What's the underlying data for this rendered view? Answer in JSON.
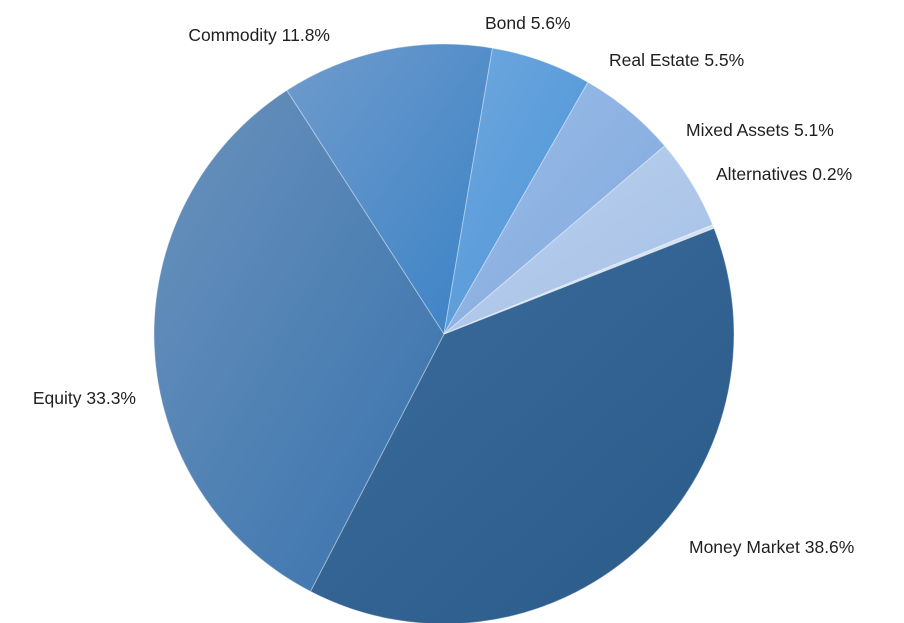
{
  "chart_data": {
    "type": "pie",
    "title": "",
    "slices": [
      {
        "label": "Money Market 38.6%",
        "value": 38.6,
        "color_from": "#3b6c9c",
        "color_to": "#2a5a88"
      },
      {
        "label": "Equity 33.3%",
        "value": 33.3,
        "color_from": "#6a92bc",
        "color_to": "#3872ad"
      },
      {
        "label": "Commodity 11.8%",
        "value": 11.8,
        "color_from": "#6f9bcc",
        "color_to": "#3a82c6"
      },
      {
        "label": "Bond 5.6%",
        "value": 5.6,
        "color_from": "#6fa8de",
        "color_to": "#4b93d8"
      },
      {
        "label": "Real Estate 5.5%",
        "value": 5.5,
        "color_from": "#9dbde6",
        "color_to": "#7ea8df"
      },
      {
        "label": "Mixed Assets 5.1%",
        "value": 5.1,
        "color_from": "#bcd1ee",
        "color_to": "#a4c0e6"
      },
      {
        "label": "Alternatives 0.2%",
        "value": 0.2,
        "color_from": "#dde7f4",
        "color_to": "#cddbef"
      }
    ]
  }
}
